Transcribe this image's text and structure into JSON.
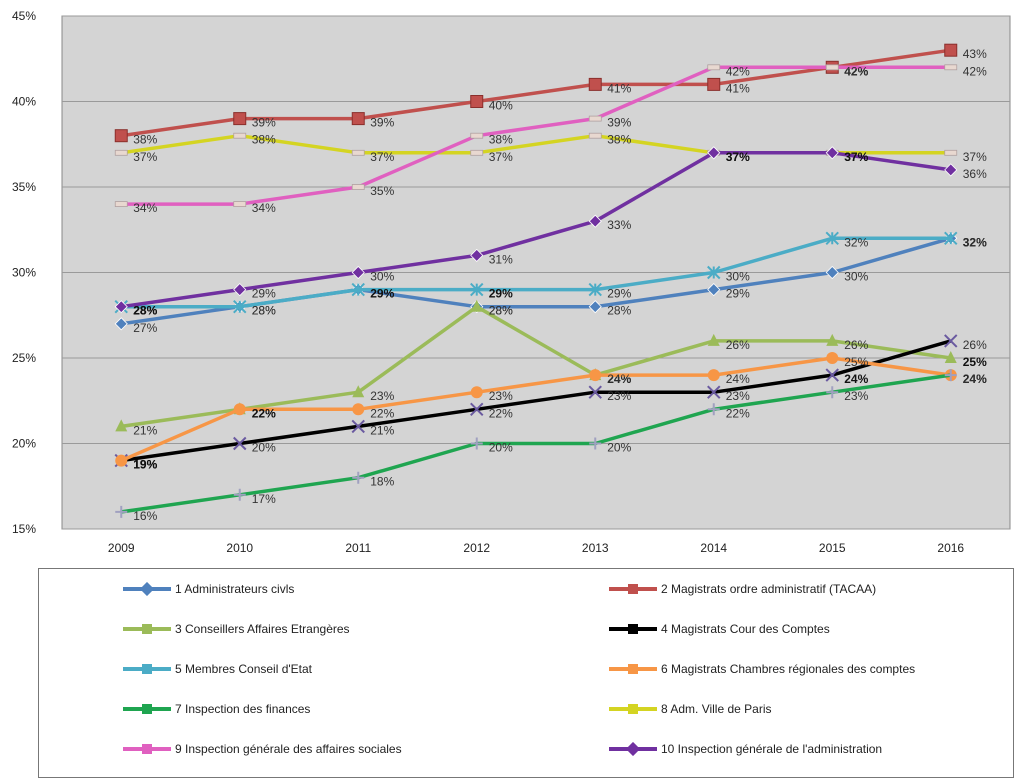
{
  "chart_data": {
    "type": "line",
    "title": "",
    "xlabel": "",
    "ylabel": "",
    "categories": [
      "2009",
      "2010",
      "2011",
      "2012",
      "2013",
      "2014",
      "2015",
      "2016"
    ],
    "ylim": [
      15,
      45
    ],
    "yticks": [
      "15%",
      "20%",
      "25%",
      "30%",
      "35%",
      "40%",
      "45%"
    ],
    "grid": true,
    "legend_position": "bottom",
    "series": [
      {
        "name": "1 Administrateurs civls",
        "color": "#4f81bd",
        "marker": "diamond",
        "values": [
          27,
          28,
          29,
          28,
          28,
          29,
          30,
          32
        ],
        "labels": [
          "27%",
          "28%",
          "29%",
          "28%",
          "28%",
          "29%",
          "30%",
          "32%"
        ]
      },
      {
        "name": "2 Magistrats ordre administratif  (TACAA)",
        "color": "#c0504d",
        "marker": "square",
        "values": [
          38,
          39,
          39,
          40,
          41,
          41,
          42,
          43
        ],
        "labels": [
          "38%",
          "39%",
          "39%",
          "40%",
          "41%",
          "41%",
          "42%",
          "43%"
        ]
      },
      {
        "name": "3 Conseillers Affaires Etrangères",
        "color": "#9bbb59",
        "marker": "triangle",
        "values": [
          21,
          22,
          23,
          28,
          24,
          26,
          26,
          25
        ],
        "labels": [
          "21%",
          "22%",
          "23%",
          "28%",
          "24%",
          "26%",
          "26%",
          "25%"
        ]
      },
      {
        "name": "4 Magistrats Cour des Comptes",
        "color": "#000000",
        "marker": "x",
        "values": [
          19,
          20,
          21,
          22,
          23,
          23,
          24,
          26
        ],
        "labels": [
          "19%",
          "20%",
          "21%",
          "22%",
          "23%",
          "23%",
          "24%",
          "26%"
        ]
      },
      {
        "name": "5 Membres Conseil d'Etat",
        "color": "#4bacc6",
        "marker": "star",
        "values": [
          28,
          28,
          29,
          29,
          29,
          30,
          32,
          32
        ],
        "labels": [
          "28%",
          "28%",
          "29%",
          "29%",
          "29%",
          "30%",
          "32%",
          "32%"
        ]
      },
      {
        "name": "6 Magistrats Chambres régionales des comptes",
        "color": "#f79646",
        "marker": "circle",
        "values": [
          19,
          22,
          22,
          23,
          24,
          24,
          25,
          24
        ],
        "labels": [
          "19%",
          "22%",
          "22%",
          "23%",
          "24%",
          "24%",
          "25%",
          "24%"
        ]
      },
      {
        "name": "7 Inspection des finances",
        "color": "#1fa550",
        "marker": "plus",
        "values": [
          16,
          17,
          18,
          20,
          20,
          22,
          23,
          24
        ],
        "labels": [
          "16%",
          "17%",
          "18%",
          "20%",
          "20%",
          "22%",
          "23%",
          "24%"
        ]
      },
      {
        "name": "8 Adm. Ville de Paris",
        "color": "#d4d422",
        "marker": "dash",
        "values": [
          37,
          38,
          37,
          37,
          38,
          37,
          37,
          37
        ],
        "labels": [
          "37%",
          "38%",
          "37%",
          "37%",
          "38%",
          "37%",
          "37%",
          "37%"
        ]
      },
      {
        "name": "9 Inspection générale  des affaires sociales",
        "color": "#e060c0",
        "marker": "dash",
        "values": [
          34,
          34,
          35,
          38,
          39,
          42,
          42,
          42
        ],
        "labels": [
          "34%",
          "34%",
          "35%",
          "38%",
          "39%",
          "42%",
          "42%",
          "42%"
        ]
      },
      {
        "name": "10 Inspection générale de l'administration",
        "color": "#7030a0",
        "marker": "diamond",
        "values": [
          28,
          29,
          30,
          31,
          33,
          37,
          37,
          36
        ],
        "labels": [
          "28%",
          "29%",
          "30%",
          "31%",
          "33%",
          "37%",
          "37%",
          "36%"
        ]
      }
    ]
  }
}
